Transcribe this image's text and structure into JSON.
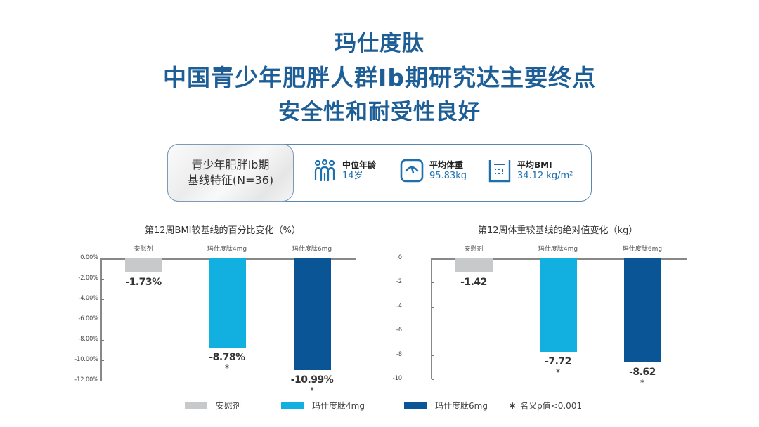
{
  "header": {
    "line1": "玛仕度肽",
    "line2": "中国青少年肥胖人群Ib期研究达主要终点",
    "line3": "安全性和耐受性良好"
  },
  "baseline": {
    "label_line1": "青少年肥胖Ib期",
    "label_line2": "基线特征(N=36)",
    "stats": [
      {
        "icon": "people-group-icon",
        "label": "中位年龄",
        "value": "14岁"
      },
      {
        "icon": "weighing-scale-icon",
        "label": "平均体重",
        "value": "95.83kg"
      },
      {
        "icon": "bmi-ruler-icon",
        "label": "平均BMI",
        "value": "34.12 kg/m²"
      }
    ]
  },
  "colors": {
    "title": "#1d5e96",
    "placebo": "#c8c9ca",
    "dose4mg": "#12b0e0",
    "dose6mg": "#0a5596"
  },
  "legend": {
    "items": [
      {
        "label": "安慰剂",
        "color": "#c8c9ca"
      },
      {
        "label": "玛仕度肽4mg",
        "color": "#12b0e0"
      },
      {
        "label": "玛仕度肽6mg",
        "color": "#0a5596"
      }
    ],
    "note_symbol": "✱",
    "note": "名义p值<0.001"
  },
  "chart_data": [
    {
      "type": "bar",
      "title": "第12周BMI较基线的百分比变化（%）",
      "categories": [
        "安慰剂",
        "玛仕度肽4mg",
        "玛仕度肽6mg"
      ],
      "values": [
        -1.73,
        -8.78,
        -10.99
      ],
      "value_labels": [
        "-1.73%",
        "-8.78%",
        "-10.99%"
      ],
      "significant": [
        false,
        true,
        true
      ],
      "ylabel": "%",
      "ylim": [
        -12,
        0
      ],
      "yticks": [
        "0.00%",
        "-2.00%",
        "-4.00%",
        "-6.00%",
        "-8.00%",
        "-10.00%",
        "-12.00%"
      ],
      "grid": false
    },
    {
      "type": "bar",
      "title": "第12周体重较基线的绝对值变化（kg）",
      "categories": [
        "安慰剂",
        "玛仕度肽4mg",
        "玛仕度肽6mg"
      ],
      "values": [
        -1.42,
        -7.72,
        -8.62
      ],
      "value_labels": [
        "-1.42",
        "-7.72",
        "-8.62"
      ],
      "significant": [
        false,
        true,
        true
      ],
      "ylabel": "kg",
      "ylim": [
        -10,
        0
      ],
      "yticks": [
        "0",
        "-2",
        "-4",
        "-6",
        "-8",
        "-10"
      ],
      "grid": false
    }
  ]
}
